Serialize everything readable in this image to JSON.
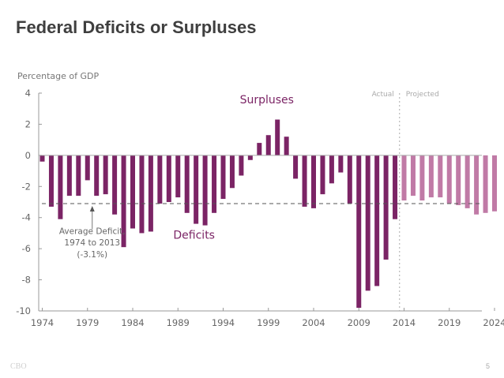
{
  "slide": {
    "title": "Federal Deficits or Surpluses",
    "footer_left": "CBO",
    "page_number": "5"
  },
  "chart_data": {
    "type": "bar",
    "title": "Federal Deficits or Surpluses",
    "ylabel": "Percentage of GDP",
    "xlabel": "",
    "ylim": [
      -10,
      4
    ],
    "yticks": [
      "4",
      "2",
      "0",
      "-2",
      "-4",
      "-6",
      "-8",
      "-10"
    ],
    "ytick_values": [
      4,
      2,
      0,
      -2,
      -4,
      -6,
      -8,
      -10
    ],
    "xticks": [
      "1974",
      "1979",
      "1984",
      "1989",
      "1994",
      "1999",
      "2004",
      "2009",
      "2014",
      "2019",
      "2024"
    ],
    "grid": false,
    "colors": {
      "actual": "#7b2465",
      "projected": "#c07aa6",
      "average_line": "#555555",
      "divider": "#aaaaaa",
      "axis": "#999999"
    },
    "series": [
      {
        "name": "Actual",
        "x": [
          1974,
          1975,
          1976,
          1977,
          1978,
          1979,
          1980,
          1981,
          1982,
          1983,
          1984,
          1985,
          1986,
          1987,
          1988,
          1989,
          1990,
          1991,
          1992,
          1993,
          1994,
          1995,
          1996,
          1997,
          1998,
          1999,
          2000,
          2001,
          2002,
          2003,
          2004,
          2005,
          2006,
          2007,
          2008,
          2009,
          2010,
          2011,
          2012,
          2013
        ],
        "values": [
          -0.4,
          -3.3,
          -4.1,
          -2.6,
          -2.6,
          -1.6,
          -2.6,
          -2.5,
          -3.8,
          -5.9,
          -4.7,
          -5.0,
          -4.9,
          -3.1,
          -3.0,
          -2.7,
          -3.7,
          -4.4,
          -4.5,
          -3.7,
          -2.8,
          -2.1,
          -1.3,
          -0.3,
          0.8,
          1.3,
          2.3,
          1.2,
          -1.5,
          -3.3,
          -3.4,
          -2.5,
          -1.8,
          -1.1,
          -3.1,
          -9.8,
          -8.7,
          -8.4,
          -6.7,
          -4.1
        ]
      },
      {
        "name": "Projected",
        "x": [
          2014,
          2015,
          2016,
          2017,
          2018,
          2019,
          2020,
          2021,
          2022,
          2023,
          2024
        ],
        "values": [
          -2.9,
          -2.6,
          -2.9,
          -2.7,
          -2.7,
          -3.1,
          -3.2,
          -3.4,
          -3.8,
          -3.7,
          -3.6
        ]
      }
    ],
    "reference_line": {
      "label": "Average Deficit, 1974 to 2013 (-3.1%)",
      "value": -3.1
    },
    "annotations": {
      "average_lines": [
        "Average Deficit,",
        "1974 to 2013",
        "(-3.1%)"
      ],
      "surpluses": "Surpluses",
      "deficits": "Deficits",
      "actual": "Actual",
      "projected": "Projected"
    }
  }
}
